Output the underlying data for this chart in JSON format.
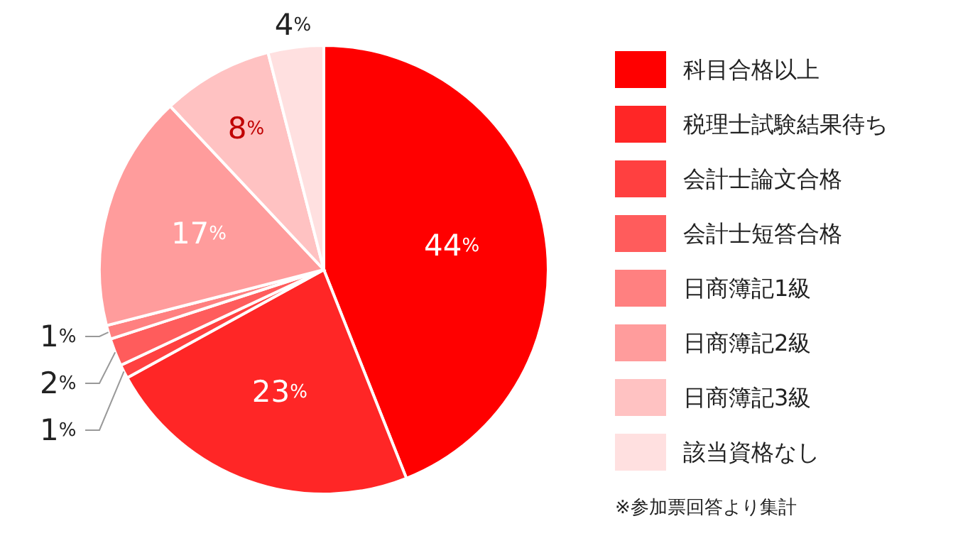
{
  "chart_data": {
    "type": "pie",
    "categories": [
      "科目合格以上",
      "税理士試験結果待ち",
      "会計士論文合格",
      "会計士短答合格",
      "日商簿記1級",
      "日商簿記2級",
      "日商簿記3級",
      "該当資格なし"
    ],
    "values": [
      44,
      23,
      1,
      2,
      1,
      17,
      8,
      4
    ],
    "colors": [
      "#ff0000",
      "#ff2626",
      "#ff4040",
      "#ff5c5c",
      "#ff8080",
      "#ff9c9c",
      "#ffc2c2",
      "#ffe0e0"
    ],
    "value_labels": [
      "44%",
      "23%",
      "1%",
      "2%",
      "1%",
      "17%",
      "8%",
      "4%"
    ],
    "legend": "right",
    "annotations": [
      "※参加票回答より集計"
    ]
  }
}
